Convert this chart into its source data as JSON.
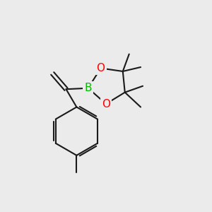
{
  "bg_color": "#ebebeb",
  "bond_color": "#1a1a1a",
  "bond_width": 1.5,
  "atom_colors": {
    "B": "#00bb00",
    "O": "#ff0000"
  },
  "font_size_atoms": 11,
  "fig_w": 3.0,
  "fig_h": 3.0,
  "dpi": 100
}
